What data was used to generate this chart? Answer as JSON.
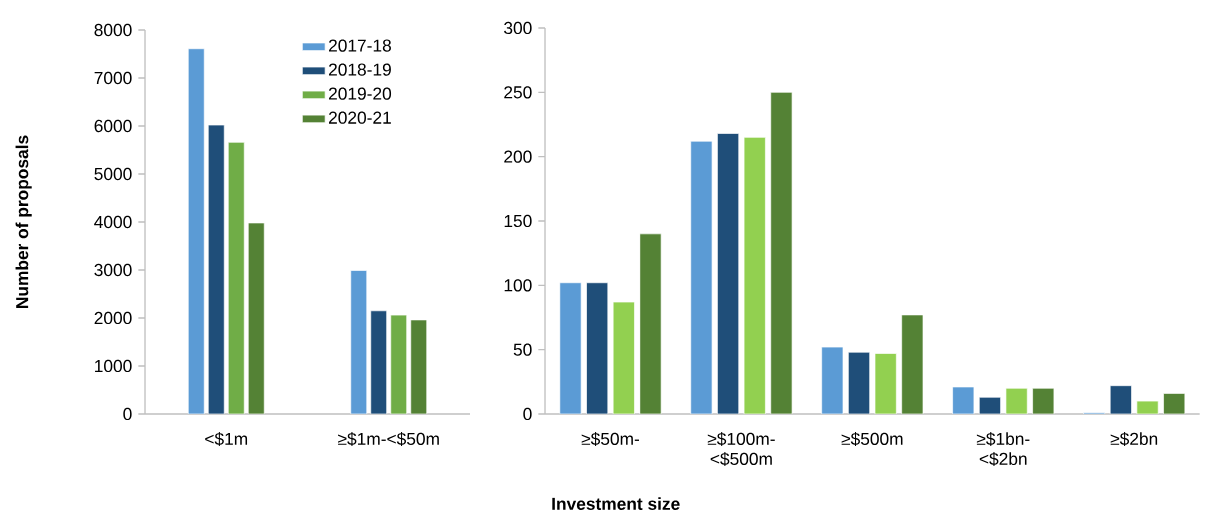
{
  "chart_data": [
    {
      "type": "bar",
      "ylabel": "Number of proposals",
      "categories": [
        "<$1m",
        "≥$1m-<$50m"
      ],
      "series": [
        {
          "name": "2017-18",
          "color": "#5b9bd5",
          "values": [
            7610,
            2990
          ]
        },
        {
          "name": "2018-19",
          "color": "#1f4e79",
          "values": [
            6020,
            2150
          ]
        },
        {
          "name": "2019-20",
          "color": "#70ad47",
          "values": [
            5660,
            2060
          ]
        },
        {
          "name": "2020-21",
          "color": "#548235",
          "values": [
            3980,
            1960
          ]
        }
      ],
      "ylim": [
        0,
        8000
      ],
      "yticks": [
        0,
        1000,
        2000,
        3000,
        4000,
        5000,
        6000,
        7000,
        8000
      ],
      "legend": "top right"
    },
    {
      "type": "bar",
      "xlabel": "Investment size",
      "categories": [
        "≥$50m-",
        "≥$100m-<$500m",
        "≥$500m",
        "≥$1bn-<$2bn",
        "≥$2bn"
      ],
      "series": [
        {
          "color": "#5b9bd5",
          "values": [
            102,
            212,
            52,
            21,
            1
          ]
        },
        {
          "color": "#1f4e79",
          "values": [
            102,
            218,
            48,
            13,
            22
          ]
        },
        {
          "color": "#92d050",
          "values": [
            87,
            215,
            47,
            20,
            10
          ]
        },
        {
          "color": "#548235",
          "values": [
            140,
            250,
            77,
            20,
            16
          ]
        }
      ],
      "ylim": [
        0,
        300
      ],
      "yticks": [
        0,
        50,
        100,
        150,
        200,
        250,
        300
      ]
    }
  ]
}
